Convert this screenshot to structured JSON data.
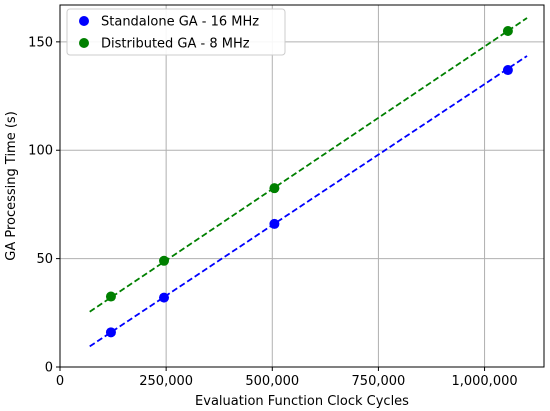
{
  "chart_data": {
    "type": "scatter",
    "title": "",
    "xlabel": "Evaluation Function Clock Cycles",
    "ylabel": "GA Processing Time (s)",
    "xlim": [
      0,
      1140000
    ],
    "ylim": [
      0,
      167
    ],
    "xticks": [
      0,
      250000,
      500000,
      750000,
      1000000
    ],
    "xtick_labels": [
      "0",
      "250,000",
      "500,000",
      "750,000",
      "1,000,000"
    ],
    "yticks": [
      0,
      50,
      100,
      150
    ],
    "ytick_labels": [
      "0",
      "50",
      "100",
      "150"
    ],
    "grid": true,
    "legend_position": "top-left",
    "series": [
      {
        "name": "Standalone GA - 16 MHz",
        "color": "#0000ff",
        "x": [
          120000,
          245000,
          505000,
          1055000
        ],
        "y": [
          16,
          32,
          66,
          137
        ],
        "fit": {
          "x_start": 70000,
          "x_end": 1100000,
          "y_start": 9.5,
          "y_end": 143.5
        }
      },
      {
        "name": "Distributed GA - 8 MHz",
        "color": "#008000",
        "x": [
          120000,
          245000,
          505000,
          1055000
        ],
        "y": [
          32.5,
          49,
          82.5,
          155
        ],
        "fit": {
          "x_start": 70000,
          "x_end": 1100000,
          "y_start": 25.5,
          "y_end": 161
        }
      }
    ]
  }
}
